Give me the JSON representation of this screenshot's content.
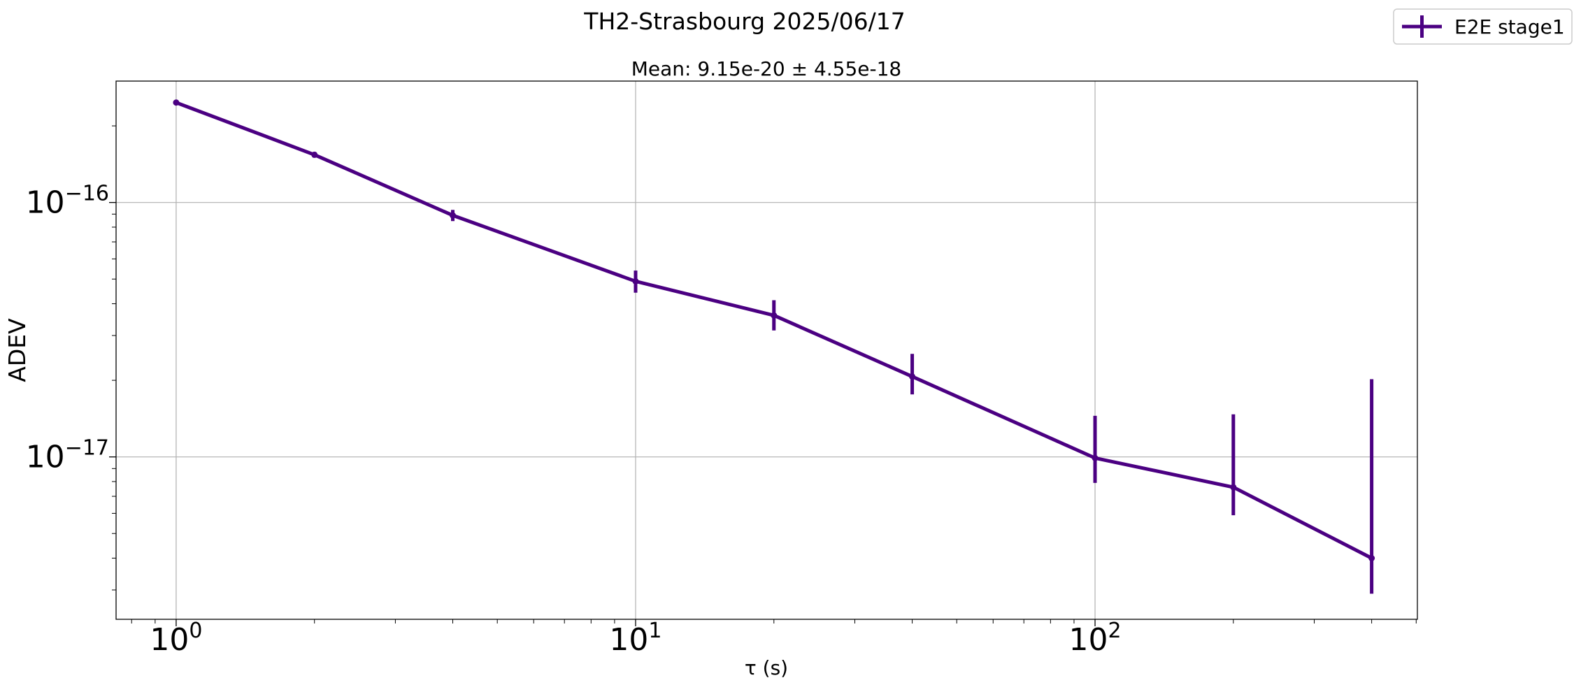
{
  "chart_data": {
    "type": "line",
    "title": "TH2-Strasbourg 2025/06/17",
    "subtitle": "Mean: 9.15e-20 ± 4.55e-18",
    "xlabel": "τ (s)",
    "ylabel": "ADEV",
    "xscale": "log",
    "yscale": "log",
    "xlim": [
      0.74,
      503
    ],
    "ylim": [
      2.3e-18,
      3e-16
    ],
    "grid": true,
    "legend_position": "top-right",
    "xticks": [
      {
        "value": 1,
        "base": "10",
        "exp": "0"
      },
      {
        "value": 10,
        "base": "10",
        "exp": "1"
      },
      {
        "value": 100,
        "base": "10",
        "exp": "2"
      }
    ],
    "yticks": [
      {
        "value": 1e-16,
        "base": "10",
        "exp": "−16"
      },
      {
        "value": 1e-17,
        "base": "10",
        "exp": "−17"
      }
    ],
    "series": [
      {
        "name": "E2E stage1",
        "color": "#4b0082",
        "x": [
          1,
          2,
          4,
          10,
          20,
          40,
          100,
          200,
          400
        ],
        "y": [
          2.47e-16,
          1.54e-16,
          8.9e-17,
          4.9e-17,
          3.6e-17,
          2.07e-17,
          9.9e-18,
          7.6e-18,
          4e-18
        ],
        "err_low": [
          2.6e-18,
          4e-18,
          4.5e-18,
          4.8e-18,
          4.6e-18,
          3.1e-18,
          2e-18,
          1.7e-18,
          1.1e-18
        ],
        "err_high": [
          2.6e-18,
          4e-18,
          4.5e-18,
          5e-18,
          5.3e-18,
          4.7e-18,
          4.6e-18,
          7.1e-18,
          1.62e-17
        ]
      }
    ]
  }
}
